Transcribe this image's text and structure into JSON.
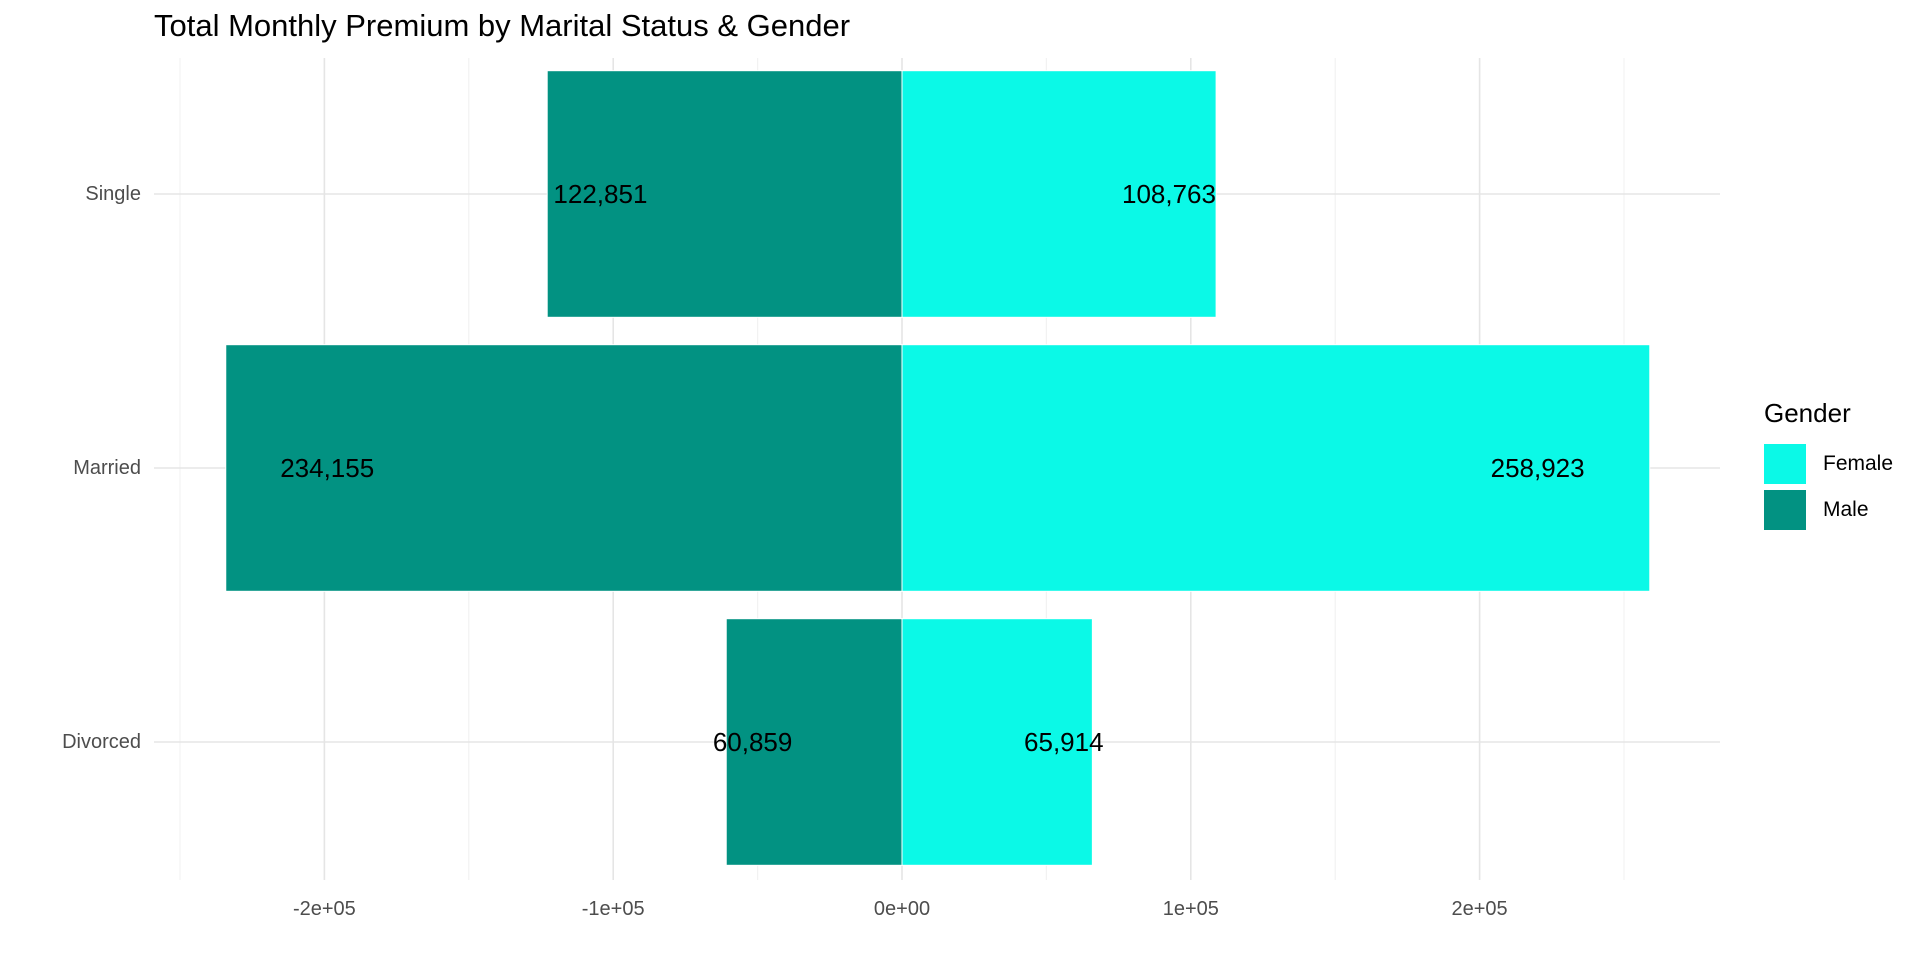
{
  "chart_data": {
    "type": "bar",
    "orientation": "horizontal",
    "stacking": "diverging",
    "title": "Total Monthly Premium by Marital Status & Gender",
    "xlabel": "",
    "ylabel": "",
    "categories": [
      "Single",
      "Married",
      "Divorced"
    ],
    "series": [
      {
        "name": "Female",
        "values": [
          108763,
          258923,
          65914
        ],
        "labels": [
          "108,763",
          "258,923",
          "65,914"
        ],
        "color": "#0BF9E7"
      },
      {
        "name": "Male",
        "values": [
          -122851,
          -234155,
          -60859
        ],
        "labels": [
          "122,851",
          "234,155",
          "60,859"
        ],
        "color": "#029282"
      }
    ],
    "xlim": [
      -250000,
      285000
    ],
    "x_ticks": [
      -200000,
      -100000,
      0,
      100000,
      200000
    ],
    "x_tick_labels": [
      "-2e+05",
      "-1e+05",
      "0e+00",
      "1e+05",
      "2e+05"
    ],
    "grid": true,
    "legend": {
      "title": "Gender",
      "position": "right",
      "items": [
        "Female",
        "Male"
      ]
    }
  }
}
